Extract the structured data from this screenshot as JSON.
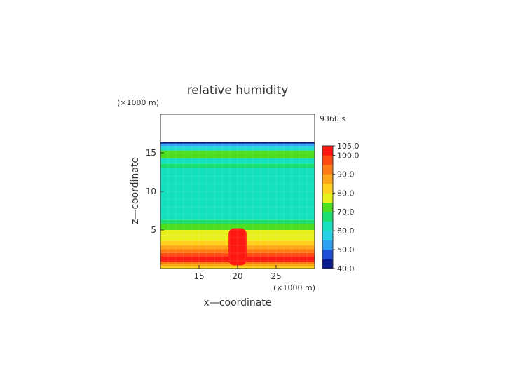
{
  "chart_data": {
    "type": "heatmap",
    "title": "relative humidity",
    "xlabel": "x—coordinate",
    "ylabel": "z—coordinate",
    "x_unit": "(×1000 m)",
    "y_unit": "(×1000 m)",
    "time_label": "9360 s",
    "xlim": [
      10,
      30
    ],
    "ylim": [
      0,
      20
    ],
    "x_ticks": [
      15,
      20,
      25
    ],
    "y_ticks": [
      5,
      10,
      15
    ],
    "colorbar": {
      "min": 40,
      "max": 105,
      "tick_labels": [
        "105.0",
        "100.0",
        "90.0",
        "80.0",
        "70.0",
        "60.0",
        "50.0",
        "40.0"
      ],
      "tick_values": [
        105,
        100,
        90,
        80,
        70,
        60,
        50,
        40
      ]
    },
    "profile_z": [
      0,
      0.3,
      0.6,
      0.9,
      1.2,
      1.6,
      2.0,
      2.5,
      3.0,
      3.6,
      4.3,
      5.0,
      5.8,
      6.3,
      7.0,
      9.0,
      12.0,
      13.0,
      13.6,
      14.3,
      15.0,
      15.3,
      15.6,
      15.9,
      16.2,
      16.4
    ],
    "profile_rh": [
      84,
      87,
      92,
      100,
      101,
      95,
      90,
      86,
      82,
      78,
      76,
      70,
      66,
      62,
      62,
      62,
      64,
      66,
      63,
      70,
      73,
      60,
      56,
      52,
      42,
      0
    ],
    "plume": {
      "center_x": 20,
      "half_width_x": 0.8,
      "top_z": 5.4,
      "value": 103
    }
  }
}
